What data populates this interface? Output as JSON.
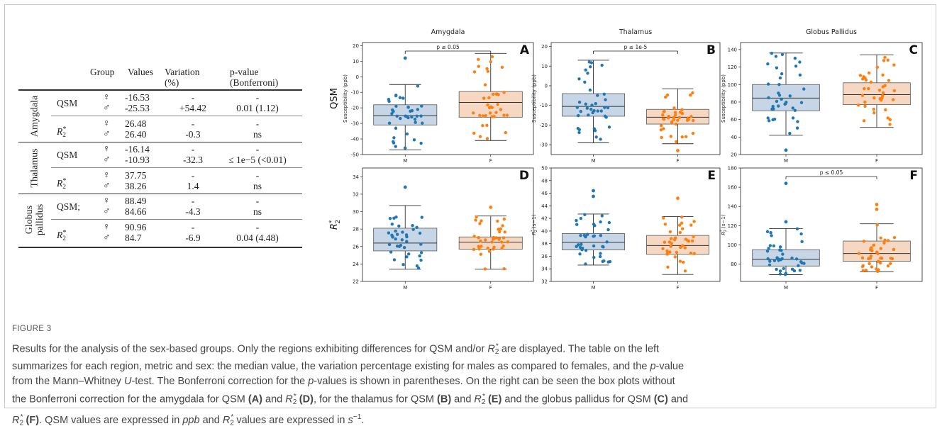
{
  "table": {
    "headers": [
      "Group",
      "Values",
      "Variation (%)",
      "p-value (Bonferroni)"
    ],
    "header_lines": [
      [
        "Group"
      ],
      [
        "Values"
      ],
      [
        "Variation",
        "(%)"
      ],
      [
        "p-value",
        "(Bonferroni)"
      ]
    ],
    "female_symbol": "♀",
    "male_symbol": "♂",
    "dash": "-",
    "regions": [
      {
        "name": "Amygdala",
        "lines": [
          "Amygdala"
        ],
        "rows": [
          {
            "metric": "QSM",
            "female": "-16.53",
            "male": "-25.53",
            "variation": "+54.42",
            "pvalue": "0.01 (1.12)"
          },
          {
            "metric": "R2*",
            "female": "26.48",
            "male": "26.40",
            "variation": "-0.3",
            "pvalue": "ns"
          }
        ]
      },
      {
        "name": "Thalamus",
        "lines": [
          "Thalamus"
        ],
        "rows": [
          {
            "metric": "QSM",
            "female": "-16.14",
            "male": "-10.93",
            "variation": "-32.3",
            "pvalue": "≤ 1e−5 (<0.01)"
          },
          {
            "metric": "R2*",
            "female": "37.75",
            "male": "38.26",
            "variation": "1.4",
            "pvalue": "ns"
          }
        ]
      },
      {
        "name": "Globus pallidus",
        "lines": [
          "Globus",
          "pallidus"
        ],
        "rows": [
          {
            "metric": "QSM;",
            "female": "88.49",
            "male": "84.66",
            "variation": "-4.3",
            "pvalue": "ns"
          },
          {
            "metric": "R2*",
            "female": "90.96",
            "male": "84.7",
            "variation": "-6.9",
            "pvalue": "0.04 (4.48)"
          }
        ]
      }
    ]
  },
  "chart_data": [
    {
      "panel": "A",
      "type": "box",
      "title": "Amygdala",
      "row_label": "QSM",
      "ylabel": "Susceptibility (ppb)",
      "categories": [
        "M",
        "F"
      ],
      "ylim": [
        -50,
        22
      ],
      "yticks": [
        20,
        10,
        0,
        -10,
        -20,
        -30,
        -40,
        -50
      ],
      "box": {
        "M": {
          "q1": -31,
          "median": -25,
          "q3": -18,
          "whisker_low": -47,
          "whisker_high": -5
        },
        "F": {
          "q1": -26,
          "median": -16.5,
          "q3": -9.5,
          "whisker_low": -41,
          "whisker_high": 15
        }
      },
      "outliers": {
        "M": [
          12
        ],
        "F": []
      },
      "annotation": "p ≤ 0.05"
    },
    {
      "panel": "B",
      "type": "box",
      "title": "Thalamus",
      "row_label": "",
      "ylabel": "Susceptibility (ppb)",
      "categories": [
        "M",
        "F"
      ],
      "ylim": [
        -35,
        22
      ],
      "yticks": [
        20,
        10,
        0,
        -10,
        -20,
        -30
      ],
      "box": {
        "M": {
          "q1": -15.5,
          "median": -10.5,
          "q3": -4,
          "whisker_low": -29,
          "whisker_high": 13
        },
        "F": {
          "q1": -19.5,
          "median": -16,
          "q3": -12,
          "whisker_low": -29.5,
          "whisker_high": -1.5
        }
      },
      "outliers": {
        "M": [],
        "F": [
          -33
        ]
      },
      "annotation": "p ≤ 1e-5"
    },
    {
      "panel": "C",
      "type": "box",
      "title": "Globus Pallidus",
      "row_label": "",
      "ylabel": "Susceptibility (ppb)",
      "categories": [
        "M",
        "F"
      ],
      "ylim": [
        20,
        148
      ],
      "yticks": [
        140,
        120,
        100,
        80,
        60,
        40,
        20
      ],
      "box": {
        "M": {
          "q1": 70,
          "median": 84.5,
          "q3": 100,
          "whisker_low": 42,
          "whisker_high": 136
        },
        "F": {
          "q1": 77,
          "median": 88.5,
          "q3": 102,
          "whisker_low": 51,
          "whisker_high": 134
        }
      },
      "outliers": {
        "M": [
          25
        ],
        "F": []
      },
      "annotation": ""
    },
    {
      "panel": "D",
      "type": "box",
      "title": "",
      "row_label": "R*2",
      "ylabel": "",
      "categories": [
        "M",
        "F"
      ],
      "ylim": [
        22,
        35
      ],
      "yticks": [
        34,
        32,
        30,
        28,
        26,
        24,
        22
      ],
      "box": {
        "M": {
          "q1": 25.5,
          "median": 26.4,
          "q3": 28.1,
          "whisker_low": 23.4,
          "whisker_high": 30.7
        },
        "F": {
          "q1": 25.7,
          "median": 26.5,
          "q3": 27.1,
          "whisker_low": 23.4,
          "whisker_high": 29.5
        }
      },
      "outliers": {
        "M": [
          32.8
        ],
        "F": [
          30.5
        ]
      },
      "annotation": ""
    },
    {
      "panel": "E",
      "type": "box",
      "title": "",
      "row_label": "",
      "ylabel": "R*2 (s−1)",
      "categories": [
        "M",
        "F"
      ],
      "ylim": [
        32,
        50
      ],
      "yticks": [
        50,
        48,
        46,
        44,
        42,
        40,
        38,
        36,
        34,
        32
      ],
      "box": {
        "M": {
          "q1": 37,
          "median": 38.2,
          "q3": 39.6,
          "whisker_low": 34.6,
          "whisker_high": 42.7
        },
        "F": {
          "q1": 36.3,
          "median": 37.7,
          "q3": 39.3,
          "whisker_low": 33.1,
          "whisker_high": 42.3
        }
      },
      "outliers": {
        "M": [
          46.4,
          45.5
        ],
        "F": [
          45.2
        ]
      },
      "annotation": ""
    },
    {
      "panel": "F",
      "type": "box",
      "title": "",
      "row_label": "",
      "ylabel": "R*2 (s−1)",
      "categories": [
        "M",
        "F"
      ],
      "ylim": [
        62,
        180
      ],
      "yticks": [
        180,
        160,
        140,
        120,
        100,
        80
      ],
      "box": {
        "M": {
          "q1": 78,
          "median": 85,
          "q3": 95,
          "whisker_low": 69,
          "whisker_high": 117
        },
        "F": {
          "q1": 83,
          "median": 91,
          "q3": 104,
          "whisker_low": 72,
          "whisker_high": 122
        },
        "_": null
      },
      "outliers": {
        "M": [
          164,
          124
        ],
        "F": [
          142,
          137
        ]
      },
      "annotation": "p ≤ 0.05"
    }
  ],
  "caption": {
    "figure_label": "FIGURE 3",
    "line1": "Results for the analysis of the sex-based groups. Only the regions exhibiting differences for QSM and/or R*2 are displayed. The table on the left",
    "line2": "summarizes for each region, metric and sex: the median value, the variation percentage existing for males as compared to females, and the p-value",
    "line3": "from the Mann–Whitney U-test. The Bonferroni correction for the p-values is shown in parentheses. On the right can be seen the box plots without",
    "line4": "the Bonferroni correction for the amygdala for QSM (A) and R*2 (D), for the thalamus for QSM (B) and R*2 (E) and the globus pallidus for QSM (C) and",
    "line5": "R*2 (F). QSM values are expressed in ppb and R*2 values are expressed in s−1."
  },
  "colors": {
    "male_fill": "#c6d6e6",
    "female_fill": "#f6d8c2",
    "male_dot": "#1f77b4",
    "female_dot": "#ff7f0e",
    "border": "#c9c9c9"
  }
}
